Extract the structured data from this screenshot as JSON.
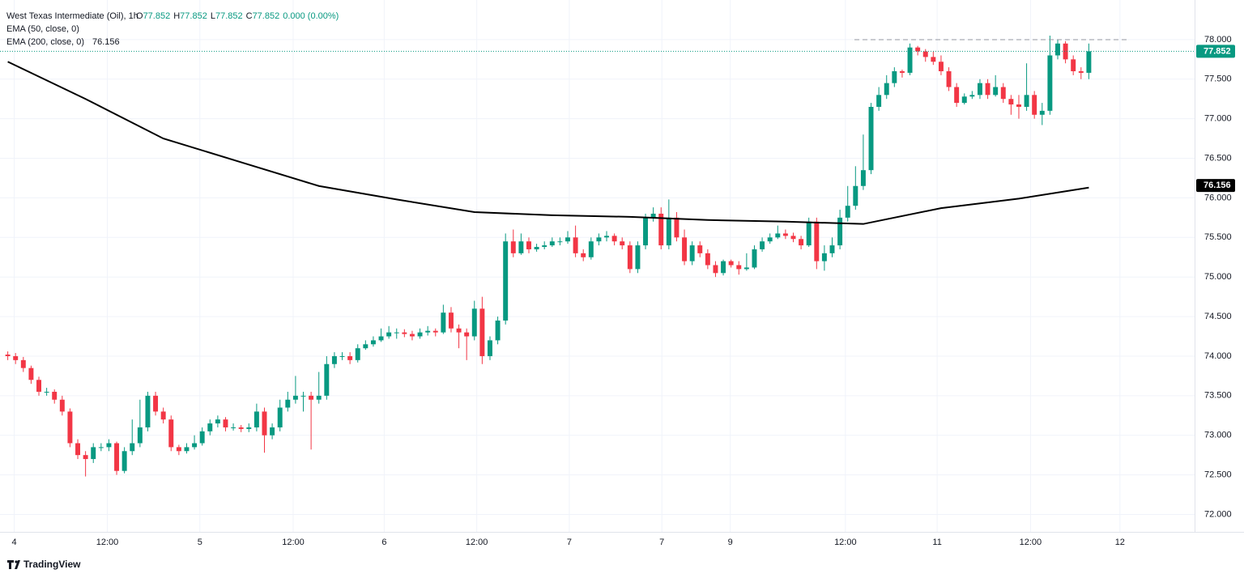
{
  "chart_data": {
    "type": "candlestick",
    "title": "West Texas Intermediate (Oil), 1h",
    "ohlc_readout": [
      {
        "label": "O",
        "value": "77.852"
      },
      {
        "label": "H",
        "value": "77.852"
      },
      {
        "label": "L",
        "value": "77.852"
      },
      {
        "label": "C",
        "value": "77.852"
      }
    ],
    "change": "0.000 (0.00%)",
    "hidden_indicator": "EMA (50, close, 0)",
    "up_color": "#089981",
    "down_color": "#f23645",
    "last_price": 77.852,
    "ema_value": 76.156,
    "brand": "TradingView",
    "xlim": [
      -1,
      152.6
    ],
    "ylim": [
      71.78,
      78.5
    ],
    "grid": true,
    "xticks": [
      {
        "value": 0.83,
        "label": "4"
      },
      {
        "value": 12.8,
        "label": "12:00"
      },
      {
        "value": 24.7,
        "label": "5"
      },
      {
        "value": 36.7,
        "label": "12:00"
      },
      {
        "value": 48.4,
        "label": "6"
      },
      {
        "value": 60.3,
        "label": "12:00"
      },
      {
        "value": 72.2,
        "label": "7"
      },
      {
        "value": 84.1,
        "label": "7"
      },
      {
        "value": 92.9,
        "label": "9"
      },
      {
        "value": 107.7,
        "label": "12:00"
      },
      {
        "value": 119.5,
        "label": "11"
      },
      {
        "value": 131.5,
        "label": "12:00"
      },
      {
        "value": 143,
        "label": "12"
      }
    ],
    "yticks": [
      {
        "value": 72,
        "label": "72.000"
      },
      {
        "value": 72.5,
        "label": "72.500"
      },
      {
        "value": 73,
        "label": "73.000"
      },
      {
        "value": 73.5,
        "label": "73.500"
      },
      {
        "value": 74,
        "label": "74.000"
      },
      {
        "value": 74.5,
        "label": "74.500"
      },
      {
        "value": 75,
        "label": "75.000"
      },
      {
        "value": 75.5,
        "label": "75.500"
      },
      {
        "value": 76,
        "label": "76.000"
      },
      {
        "value": 76.5,
        "label": "76.500"
      },
      {
        "value": 77,
        "label": "77.000"
      },
      {
        "value": 77.5,
        "label": "77.500"
      },
      {
        "value": 78,
        "label": "78.000"
      }
    ],
    "series": [
      {
        "name": "EMA (200, close, 0)",
        "color": "#000000",
        "x": [
          0,
          10,
          20,
          30,
          40,
          50,
          60,
          70,
          80,
          90,
          100,
          110,
          120,
          130,
          139
        ],
        "values": [
          77.72,
          77.25,
          76.75,
          76.45,
          76.15,
          75.98,
          75.82,
          75.78,
          75.76,
          75.72,
          75.7,
          75.67,
          75.87,
          75.99,
          76.13
        ]
      }
    ],
    "candles": [
      [
        74.02,
        74.06,
        73.95,
        74.0
      ],
      [
        74.0,
        74.04,
        73.9,
        73.95
      ],
      [
        73.95,
        73.99,
        73.8,
        73.85
      ],
      [
        73.85,
        73.88,
        73.65,
        73.7
      ],
      [
        73.7,
        73.74,
        73.5,
        73.55
      ],
      [
        73.55,
        73.6,
        73.5,
        73.55
      ],
      [
        73.55,
        73.58,
        73.4,
        73.45
      ],
      [
        73.45,
        73.5,
        73.25,
        73.3
      ],
      [
        73.3,
        73.34,
        72.85,
        72.9
      ],
      [
        72.9,
        72.95,
        72.7,
        72.75
      ],
      [
        72.75,
        72.8,
        72.48,
        72.7
      ],
      [
        72.7,
        72.9,
        72.65,
        72.85
      ],
      [
        72.85,
        72.9,
        72.8,
        72.85
      ],
      [
        72.85,
        72.95,
        72.8,
        72.9
      ],
      [
        72.9,
        72.92,
        72.5,
        72.55
      ],
      [
        72.55,
        72.85,
        72.52,
        72.8
      ],
      [
        72.8,
        73.2,
        72.75,
        72.9
      ],
      [
        72.9,
        73.45,
        72.85,
        73.1
      ],
      [
        73.1,
        73.55,
        73.05,
        73.5
      ],
      [
        73.5,
        73.55,
        73.25,
        73.3
      ],
      [
        73.3,
        73.35,
        73.15,
        73.2
      ],
      [
        73.2,
        73.25,
        72.8,
        72.85
      ],
      [
        72.85,
        72.88,
        72.75,
        72.8
      ],
      [
        72.8,
        72.9,
        72.77,
        72.85
      ],
      [
        72.85,
        73.0,
        72.82,
        72.9
      ],
      [
        72.9,
        73.1,
        72.87,
        73.05
      ],
      [
        73.05,
        73.2,
        73.0,
        73.15
      ],
      [
        73.15,
        73.25,
        73.1,
        73.2
      ],
      [
        73.2,
        73.23,
        73.05,
        73.1
      ],
      [
        73.1,
        73.15,
        73.06,
        73.1
      ],
      [
        73.1,
        73.13,
        73.04,
        73.08
      ],
      [
        73.08,
        73.15,
        73.04,
        73.1
      ],
      [
        73.1,
        73.4,
        73.05,
        73.3
      ],
      [
        73.3,
        73.35,
        72.78,
        73.0
      ],
      [
        73.0,
        73.15,
        72.95,
        73.1
      ],
      [
        73.1,
        73.45,
        73.05,
        73.35
      ],
      [
        73.35,
        73.55,
        73.3,
        73.45
      ],
      [
        73.45,
        73.75,
        73.4,
        73.5
      ],
      [
        73.5,
        73.55,
        73.3,
        73.5
      ],
      [
        73.5,
        73.55,
        72.82,
        73.45
      ],
      [
        73.45,
        73.8,
        73.4,
        73.5
      ],
      [
        73.5,
        74.0,
        73.45,
        73.9
      ],
      [
        73.9,
        74.05,
        73.85,
        74.0
      ],
      [
        74.0,
        74.05,
        73.95,
        74.0
      ],
      [
        74.0,
        74.05,
        73.9,
        73.95
      ],
      [
        73.95,
        74.15,
        73.92,
        74.1
      ],
      [
        74.1,
        74.2,
        74.08,
        74.15
      ],
      [
        74.15,
        74.25,
        74.12,
        74.2
      ],
      [
        74.2,
        74.35,
        74.18,
        74.25
      ],
      [
        74.25,
        74.38,
        74.22,
        74.3
      ],
      [
        74.3,
        74.35,
        74.22,
        74.3
      ],
      [
        74.3,
        74.34,
        74.24,
        74.28
      ],
      [
        74.28,
        74.32,
        74.2,
        74.25
      ],
      [
        74.25,
        74.35,
        74.22,
        74.3
      ],
      [
        74.3,
        74.38,
        74.26,
        74.32
      ],
      [
        74.32,
        74.35,
        74.25,
        74.3
      ],
      [
        74.3,
        74.65,
        74.28,
        74.55
      ],
      [
        74.55,
        74.62,
        74.3,
        74.35
      ],
      [
        74.35,
        74.4,
        74.1,
        74.3
      ],
      [
        74.3,
        74.35,
        73.95,
        74.25
      ],
      [
        74.25,
        74.7,
        74.2,
        74.6
      ],
      [
        74.6,
        74.75,
        73.9,
        74.0
      ],
      [
        74.0,
        74.25,
        73.95,
        74.2
      ],
      [
        74.2,
        74.5,
        74.15,
        74.45
      ],
      [
        74.45,
        75.55,
        74.4,
        75.45
      ],
      [
        75.45,
        75.6,
        75.25,
        75.3
      ],
      [
        75.3,
        75.55,
        75.28,
        75.45
      ],
      [
        75.45,
        75.5,
        75.3,
        75.35
      ],
      [
        75.35,
        75.42,
        75.32,
        75.38
      ],
      [
        75.38,
        75.45,
        75.35,
        75.4
      ],
      [
        75.4,
        75.5,
        75.38,
        75.45
      ],
      [
        75.45,
        75.5,
        75.4,
        75.45
      ],
      [
        75.45,
        75.58,
        75.42,
        75.5
      ],
      [
        75.5,
        75.65,
        75.25,
        75.3
      ],
      [
        75.3,
        75.35,
        75.2,
        75.25
      ],
      [
        75.25,
        75.5,
        75.22,
        75.45
      ],
      [
        75.45,
        75.55,
        75.4,
        75.5
      ],
      [
        75.5,
        75.58,
        75.45,
        75.52
      ],
      [
        75.52,
        75.55,
        75.4,
        75.45
      ],
      [
        75.45,
        75.5,
        75.35,
        75.4
      ],
      [
        75.4,
        75.45,
        75.05,
        75.1
      ],
      [
        75.1,
        75.45,
        75.05,
        75.4
      ],
      [
        75.4,
        75.8,
        75.35,
        75.75
      ],
      [
        75.75,
        75.88,
        75.7,
        75.8
      ],
      [
        75.8,
        75.88,
        75.35,
        75.4
      ],
      [
        75.4,
        75.98,
        75.35,
        75.75
      ],
      [
        75.75,
        75.82,
        75.45,
        75.5
      ],
      [
        75.5,
        75.6,
        75.15,
        75.2
      ],
      [
        75.2,
        75.45,
        75.15,
        75.4
      ],
      [
        75.4,
        75.45,
        75.25,
        75.3
      ],
      [
        75.3,
        75.35,
        75.1,
        75.15
      ],
      [
        75.15,
        75.2,
        75.0,
        75.05
      ],
      [
        75.05,
        75.22,
        75.02,
        75.2
      ],
      [
        75.2,
        75.22,
        75.12,
        75.15
      ],
      [
        75.15,
        75.2,
        75.03,
        75.1
      ],
      [
        75.1,
        75.3,
        75.08,
        75.12
      ],
      [
        75.12,
        75.4,
        75.1,
        75.35
      ],
      [
        75.35,
        75.5,
        75.32,
        75.45
      ],
      [
        75.45,
        75.55,
        75.42,
        75.5
      ],
      [
        75.5,
        75.65,
        75.48,
        75.55
      ],
      [
        75.55,
        75.6,
        75.48,
        75.52
      ],
      [
        75.52,
        75.56,
        75.44,
        75.48
      ],
      [
        75.48,
        75.52,
        75.35,
        75.4
      ],
      [
        75.4,
        75.75,
        75.38,
        75.7
      ],
      [
        75.7,
        75.75,
        75.1,
        75.2
      ],
      [
        75.2,
        75.4,
        75.08,
        75.3
      ],
      [
        75.3,
        75.5,
        75.25,
        75.4
      ],
      [
        75.4,
        75.85,
        75.35,
        75.75
      ],
      [
        75.75,
        76.15,
        75.7,
        75.9
      ],
      [
        75.9,
        76.4,
        75.85,
        76.15
      ],
      [
        76.15,
        76.8,
        76.1,
        76.35
      ],
      [
        76.35,
        77.2,
        76.3,
        77.15
      ],
      [
        77.15,
        77.4,
        77.1,
        77.3
      ],
      [
        77.3,
        77.55,
        77.25,
        77.45
      ],
      [
        77.45,
        77.65,
        77.4,
        77.6
      ],
      [
        77.6,
        77.62,
        77.52,
        77.58
      ],
      [
        77.58,
        77.95,
        77.55,
        77.9
      ],
      [
        77.9,
        77.92,
        77.8,
        77.85
      ],
      [
        77.85,
        77.88,
        77.72,
        77.78
      ],
      [
        77.78,
        77.85,
        77.68,
        77.72
      ],
      [
        77.72,
        77.8,
        77.55,
        77.6
      ],
      [
        77.6,
        77.65,
        77.35,
        77.4
      ],
      [
        77.4,
        77.45,
        77.15,
        77.2
      ],
      [
        77.2,
        77.32,
        77.18,
        77.28
      ],
      [
        77.28,
        77.35,
        77.25,
        77.3
      ],
      [
        77.3,
        77.5,
        77.25,
        77.45
      ],
      [
        77.45,
        77.5,
        77.25,
        77.3
      ],
      [
        77.3,
        77.55,
        77.28,
        77.4
      ],
      [
        77.4,
        77.45,
        77.2,
        77.25
      ],
      [
        77.25,
        77.3,
        77.05,
        77.18
      ],
      [
        77.18,
        77.3,
        77.0,
        77.15
      ],
      [
        77.15,
        77.7,
        77.1,
        77.3
      ],
      [
        77.3,
        77.35,
        77.0,
        77.05
      ],
      [
        77.05,
        77.2,
        76.92,
        77.1
      ],
      [
        77.1,
        78.05,
        77.05,
        77.8
      ],
      [
        77.8,
        78.0,
        77.75,
        77.95
      ],
      [
        77.95,
        77.98,
        77.7,
        77.75
      ],
      [
        77.75,
        77.8,
        77.55,
        77.6
      ],
      [
        77.6,
        77.65,
        77.5,
        77.58
      ],
      [
        77.58,
        77.95,
        77.5,
        77.852
      ]
    ]
  }
}
